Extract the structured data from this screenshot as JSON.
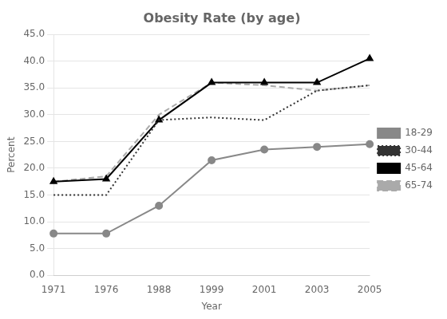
{
  "chart_data": {
    "type": "line",
    "title": "Obesity Rate (by age)",
    "xlabel": "Year",
    "ylabel": "Percent",
    "categories": [
      "1971",
      "1976",
      "1988",
      "1999",
      "2001",
      "2003",
      "2005"
    ],
    "series": [
      {
        "name": "18-29",
        "color": "#888888",
        "marker": "circle",
        "line_style": "solid",
        "values": [
          7.8,
          7.8,
          13.0,
          21.5,
          23.5,
          24.0,
          24.5
        ]
      },
      {
        "name": "30-44",
        "color": "#333333",
        "marker": "none",
        "line_style": "dotted",
        "values": [
          15.0,
          15.0,
          29.0,
          29.5,
          29.0,
          34.5,
          35.5
        ]
      },
      {
        "name": "45-64",
        "color": "#000000",
        "marker": "triangle",
        "line_style": "solid",
        "values": [
          17.5,
          18.0,
          29.0,
          36.0,
          36.0,
          36.0,
          40.5
        ]
      },
      {
        "name": "65-74",
        "color": "#aaaaaa",
        "marker": "none",
        "line_style": "dashed",
        "values": [
          17.5,
          18.5,
          30.0,
          36.0,
          35.5,
          34.5,
          35.5
        ]
      }
    ],
    "ylim": [
      0,
      45
    ],
    "yticks": [
      {
        "value": 0,
        "label": "0.0"
      },
      {
        "value": 5,
        "label": "5.0"
      },
      {
        "value": 10,
        "label": "10.0"
      },
      {
        "value": 15,
        "label": "15.0"
      },
      {
        "value": 20,
        "label": "20.0"
      },
      {
        "value": 25,
        "label": "25.0"
      },
      {
        "value": 30,
        "label": "30.0"
      },
      {
        "value": 35,
        "label": "35.0"
      },
      {
        "value": 40,
        "label": "40.0"
      },
      {
        "value": 45,
        "label": "45.0"
      }
    ],
    "grid": true,
    "legend": "right"
  }
}
